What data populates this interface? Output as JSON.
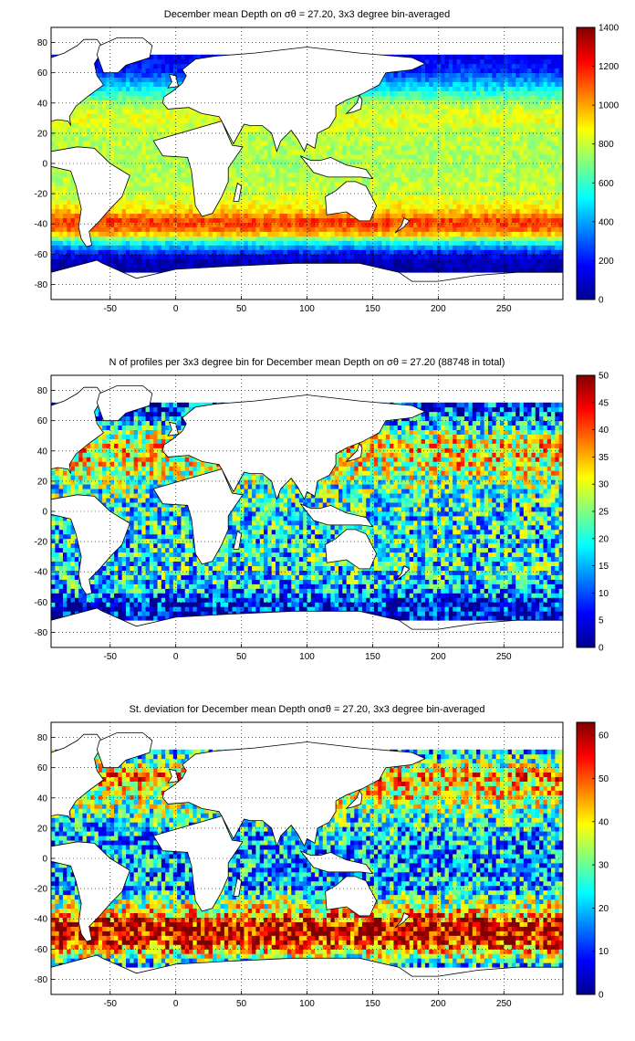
{
  "figure": {
    "colormap": [
      "#00008F",
      "#0000FF",
      "#0080FF",
      "#00FFFF",
      "#80FF80",
      "#FFFF00",
      "#FF8000",
      "#FF0000",
      "#800000"
    ],
    "land_color": "#FFFFFF",
    "coast_color": "#000000"
  },
  "chart_data": [
    {
      "type": "heatmap",
      "id": "mean",
      "title": "December mean Depth on σθ = 27.20, 3x3 degree bin-averaged",
      "xlim": [
        -95,
        295
      ],
      "ylim": [
        -90,
        90
      ],
      "xticks": [
        "-50",
        "0",
        "50",
        "100",
        "150",
        "200",
        "250"
      ],
      "xtick_values": [
        -50,
        0,
        50,
        100,
        150,
        200,
        250
      ],
      "yticks": [
        "80",
        "60",
        "40",
        "20",
        "0",
        "-20",
        "-40",
        "-60",
        "-80"
      ],
      "ytick_values": [
        80,
        60,
        40,
        20,
        0,
        -20,
        -40,
        -60,
        -80
      ],
      "colorbar": {
        "min": 0,
        "max": 1400,
        "ticks": [
          "0",
          "200",
          "400",
          "600",
          "800",
          "1000",
          "1200",
          "1400"
        ],
        "tick_values": [
          0,
          200,
          400,
          600,
          800,
          1000,
          1200,
          1400
        ]
      },
      "grid": true,
      "field_profile": [
        {
          "lat": 70,
          "value": 150
        },
        {
          "lat": 60,
          "value": 250
        },
        {
          "lat": 50,
          "value": 500
        },
        {
          "lat": 40,
          "value": 750
        },
        {
          "lat": 30,
          "value": 850
        },
        {
          "lat": 20,
          "value": 780
        },
        {
          "lat": 0,
          "value": 760
        },
        {
          "lat": -20,
          "value": 800
        },
        {
          "lat": -30,
          "value": 900
        },
        {
          "lat": -38,
          "value": 1150
        },
        {
          "lat": -45,
          "value": 1050
        },
        {
          "lat": -52,
          "value": 550
        },
        {
          "lat": -58,
          "value": 250
        },
        {
          "lat": -63,
          "value": 80
        },
        {
          "lat": -70,
          "value": 30
        }
      ]
    },
    {
      "type": "heatmap",
      "id": "count",
      "title": "N of profiles per 3x3 degree bin for December mean Depth on σθ = 27.20 (88748 in total)",
      "xlim": [
        -95,
        295
      ],
      "ylim": [
        -90,
        90
      ],
      "xticks": [
        "-50",
        "0",
        "50",
        "100",
        "150",
        "200",
        "250"
      ],
      "xtick_values": [
        -50,
        0,
        50,
        100,
        150,
        200,
        250
      ],
      "yticks": [
        "80",
        "60",
        "40",
        "20",
        "0",
        "-20",
        "-40",
        "-60",
        "-80"
      ],
      "ytick_values": [
        80,
        60,
        40,
        20,
        0,
        -20,
        -40,
        -60,
        -80
      ],
      "colorbar": {
        "min": 0,
        "max": 50,
        "ticks": [
          "0",
          "5",
          "10",
          "15",
          "20",
          "25",
          "30",
          "35",
          "40",
          "45",
          "50"
        ],
        "tick_values": [
          0,
          5,
          10,
          15,
          20,
          25,
          30,
          35,
          40,
          45,
          50
        ]
      },
      "grid": true,
      "field_profile": [
        {
          "lat": 70,
          "value": 8
        },
        {
          "lat": 60,
          "value": 15
        },
        {
          "lat": 45,
          "value": 32
        },
        {
          "lat": 30,
          "value": 30
        },
        {
          "lat": 15,
          "value": 22
        },
        {
          "lat": 0,
          "value": 20
        },
        {
          "lat": -20,
          "value": 18
        },
        {
          "lat": -40,
          "value": 20
        },
        {
          "lat": -52,
          "value": 15
        },
        {
          "lat": -60,
          "value": 7
        },
        {
          "lat": -70,
          "value": 3
        }
      ]
    },
    {
      "type": "heatmap",
      "id": "std",
      "title": "St. deviation for December mean Depth onσθ = 27.20, 3x3 degree bin-averaged",
      "xlim": [
        -95,
        295
      ],
      "ylim": [
        -90,
        90
      ],
      "xticks": [
        "-50",
        "0",
        "50",
        "100",
        "150",
        "200",
        "250"
      ],
      "xtick_values": [
        -50,
        0,
        50,
        100,
        150,
        200,
        250
      ],
      "yticks": [
        "80",
        "60",
        "40",
        "20",
        "0",
        "-20",
        "-40",
        "-60",
        "-80"
      ],
      "ytick_values": [
        80,
        60,
        40,
        20,
        0,
        -20,
        -40,
        -60,
        -80
      ],
      "colorbar": {
        "min": 0,
        "max": 63,
        "ticks": [
          "0",
          "10",
          "20",
          "30",
          "40",
          "50",
          "60"
        ],
        "tick_values": [
          0,
          10,
          20,
          30,
          40,
          50,
          60
        ]
      },
      "grid": true,
      "field_profile": [
        {
          "lat": 70,
          "value": 20
        },
        {
          "lat": 55,
          "value": 45
        },
        {
          "lat": 45,
          "value": 40
        },
        {
          "lat": 30,
          "value": 28
        },
        {
          "lat": 15,
          "value": 20
        },
        {
          "lat": 0,
          "value": 18
        },
        {
          "lat": -20,
          "value": 20
        },
        {
          "lat": -35,
          "value": 40
        },
        {
          "lat": -45,
          "value": 60
        },
        {
          "lat": -55,
          "value": 55
        },
        {
          "lat": -62,
          "value": 40
        },
        {
          "lat": -70,
          "value": 20
        }
      ]
    }
  ]
}
